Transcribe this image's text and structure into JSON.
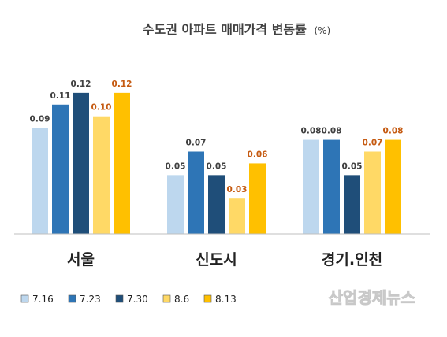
{
  "chart_data": {
    "type": "bar",
    "title": "수도권 아파트 매매가격 변동률",
    "title_unit": "(%)",
    "categories": [
      "서울",
      "신도시",
      "경기.인천"
    ],
    "series": [
      {
        "name": "7.16",
        "values": [
          0.09,
          0.05,
          0.08
        ],
        "color": "#bdd7ee",
        "label_color": "#404040"
      },
      {
        "name": "7.23",
        "values": [
          0.11,
          0.07,
          0.08
        ],
        "color": "#2e75b6",
        "label_color": "#404040"
      },
      {
        "name": "7.30",
        "values": [
          0.12,
          0.05,
          0.05
        ],
        "color": "#1f4e79",
        "label_color": "#404040"
      },
      {
        "name": "8.6",
        "values": [
          0.1,
          0.03,
          0.07
        ],
        "color": "#ffd966",
        "label_color": "#c55a11"
      },
      {
        "name": "8.13",
        "values": [
          0.12,
          0.06,
          0.08
        ],
        "color": "#ffc000",
        "label_color": "#c55a11"
      }
    ],
    "ylim": [
      0,
      0.14
    ],
    "grid": false,
    "legend_position": "bottom-left"
  },
  "watermark": "산업경제뉴스",
  "colors": {
    "axis": "#bfbfbf",
    "title": "#404040",
    "category": "#222222"
  }
}
